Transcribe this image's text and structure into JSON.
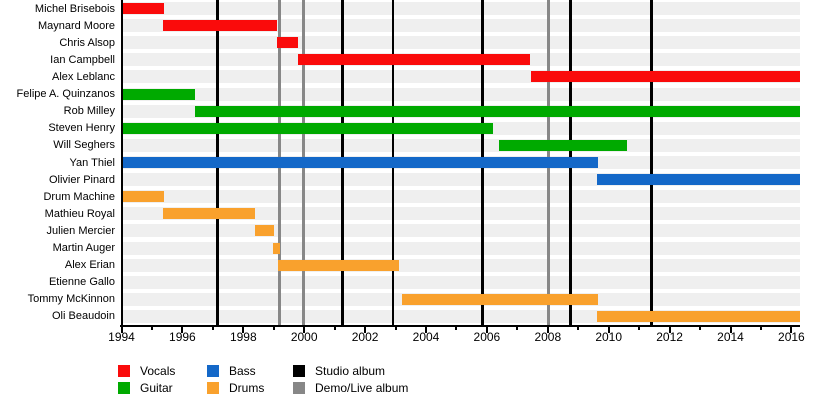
{
  "chart_data": {
    "type": "bar",
    "variant": "gantt-member-timeline",
    "title": "",
    "xlabel": "",
    "ylabel": "",
    "x_axis": {
      "min": 1994,
      "max": 2016.3,
      "tick_interval_years": 1,
      "label_interval_years": 2,
      "tick_labels": [
        "1994",
        "1996",
        "1998",
        "2000",
        "2002",
        "2004",
        "2006",
        "2008",
        "2010",
        "2012",
        "2014",
        "2016"
      ]
    },
    "members": [
      {
        "name": "Michel Brisebois",
        "role": "Vocals",
        "start": 1994,
        "end": 1995.4
      },
      {
        "name": "Maynard Moore",
        "role": "Vocals",
        "start": 1995.35,
        "end": 1999.1
      },
      {
        "name": "Chris Alsop",
        "role": "Vocals",
        "start": 1999.1,
        "end": 1999.8
      },
      {
        "name": "Ian Campbell",
        "role": "Vocals",
        "start": 1999.8,
        "end": 2007.4
      },
      {
        "name": "Alex Leblanc",
        "role": "Vocals",
        "start": 2007.45,
        "end": 2016.3
      },
      {
        "name": "Felipe A. Quinzanos",
        "role": "Guitar",
        "start": 1994,
        "end": 1996.4
      },
      {
        "name": "Rob Milley",
        "role": "Guitar",
        "start": 1996.4,
        "end": 2016.3
      },
      {
        "name": "Steven Henry",
        "role": "Guitar",
        "start": 1994,
        "end": 2006.2
      },
      {
        "name": "Will Seghers",
        "role": "Guitar",
        "start": 2006.4,
        "end": 2010.6
      },
      {
        "name": "Yan Thiel",
        "role": "Bass",
        "start": 1994,
        "end": 2009.65
      },
      {
        "name": "Olivier Pinard",
        "role": "Bass",
        "start": 2009.6,
        "end": 2016.3
      },
      {
        "name": "Drum Machine",
        "role": "Drums",
        "start": 1994,
        "end": 1995.4
      },
      {
        "name": "Mathieu Royal",
        "role": "Drums",
        "start": 1995.35,
        "end": 1998.4
      },
      {
        "name": "Julien Mercier",
        "role": "Drums",
        "start": 1998.4,
        "end": 1999.0
      },
      {
        "name": "Martin Auger",
        "role": "Drums",
        "start": 1998.98,
        "end": 1999.2
      },
      {
        "name": "Alex Erian",
        "role": "Drums",
        "start": 1999.15,
        "end": 2003.1
      },
      {
        "name": "Etienne Gallo",
        "role": "Drums",
        "start": null,
        "end": null
      },
      {
        "name": "Tommy McKinnon",
        "role": "Drums",
        "start": 2003.2,
        "end": 2009.65
      },
      {
        "name": "Oli Beaudoin",
        "role": "Drums",
        "start": 2009.6,
        "end": 2016.3
      }
    ],
    "events": {
      "studio_albums": [
        1997.15,
        2001.25,
        2002.92,
        2005.85,
        2008.75,
        2011.4
      ],
      "demo_live_albums": [
        1999.2,
        1999.97,
        2008.03
      ]
    }
  },
  "legend": {
    "columns": [
      [
        {
          "label": "Vocals",
          "color": "#fa0b0b"
        },
        {
          "label": "Guitar",
          "color": "#00aa00"
        }
      ],
      [
        {
          "label": "Bass",
          "color": "#1468c8"
        },
        {
          "label": "Drums",
          "color": "#f9a12d"
        }
      ],
      [
        {
          "label": "Studio album",
          "color": "#000000"
        },
        {
          "label": "Demo/Live album",
          "color": "#878787"
        }
      ]
    ]
  },
  "colors": {
    "Vocals": "#fa0b0b",
    "Guitar": "#00aa00",
    "Bass": "#1468c8",
    "Drums": "#f9a12d",
    "studio_album_line": "#000000",
    "demo_live_line": "#878787",
    "row_track": "#efefef",
    "axis": "#000000"
  }
}
